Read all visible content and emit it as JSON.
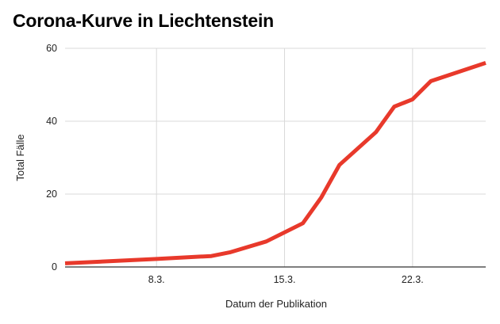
{
  "chart_data": {
    "type": "line",
    "title": "Corona-Kurve in Liechtenstein",
    "xlabel": "Datum der Publikation",
    "ylabel": "Total Fälle",
    "x_ticks": [
      {
        "day": 8,
        "label": "8.3."
      },
      {
        "day": 15,
        "label": "15.3."
      },
      {
        "day": 22,
        "label": "22.3."
      }
    ],
    "xlim": [
      3,
      26
    ],
    "ylim": [
      0,
      60
    ],
    "y_ticks": [
      0,
      20,
      40,
      60
    ],
    "grid": true,
    "series": [
      {
        "color": "#e8392b",
        "points": [
          {
            "day": 3,
            "value": 1
          },
          {
            "day": 8,
            "value": 2.2
          },
          {
            "day": 11,
            "value": 3
          },
          {
            "day": 12,
            "value": 4
          },
          {
            "day": 14,
            "value": 7
          },
          {
            "day": 16,
            "value": 12
          },
          {
            "day": 17,
            "value": 19
          },
          {
            "day": 18,
            "value": 28
          },
          {
            "day": 20,
            "value": 37
          },
          {
            "day": 21,
            "value": 44
          },
          {
            "day": 22,
            "value": 46
          },
          {
            "day": 23,
            "value": 51
          },
          {
            "day": 26,
            "value": 56
          }
        ]
      }
    ]
  }
}
